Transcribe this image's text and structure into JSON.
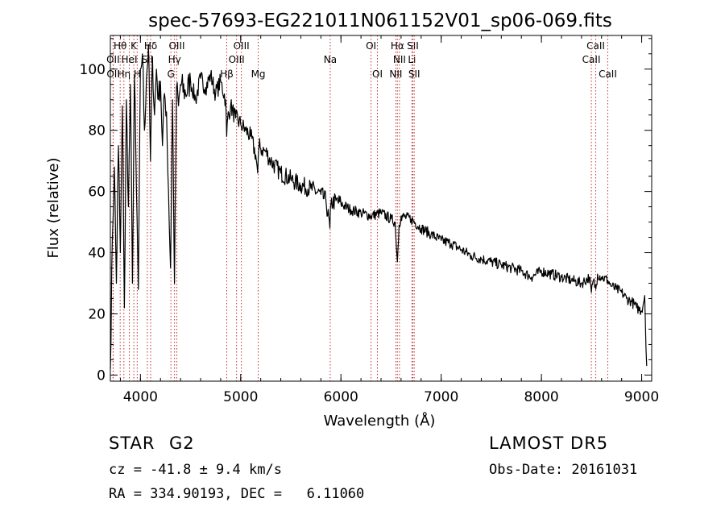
{
  "chart_data": {
    "type": "line",
    "title": "spec-57693-EG221011N061152V01_sp06-069.fits",
    "xlabel": "Wavelength (Å)",
    "ylabel": "Flux (relative)",
    "xlim": [
      3700,
      9100
    ],
    "ylim": [
      -2,
      111
    ],
    "xticks": [
      4000,
      5000,
      6000,
      7000,
      8000,
      9000
    ],
    "yticks": [
      0,
      20,
      40,
      60,
      80,
      100
    ],
    "line_color": "#000000",
    "marker_color": "#c03030",
    "series": [
      {
        "x": [
          3700,
          3720,
          3740,
          3760,
          3780,
          3800,
          3820,
          3840,
          3860,
          3880,
          3900,
          3920,
          3940,
          3960,
          3980,
          4000,
          4020,
          4040,
          4060,
          4080,
          4100,
          4120,
          4140,
          4160,
          4180,
          4200,
          4220,
          4240,
          4260,
          4280,
          4300,
          4320,
          4340,
          4360,
          4380,
          4400,
          4450,
          4500,
          4550,
          4600,
          4650,
          4700,
          4750,
          4800,
          4850,
          4860,
          4870,
          4900,
          4950,
          5000,
          5050,
          5100,
          5150,
          5170,
          5183,
          5200,
          5250,
          5300,
          5400,
          5500,
          5600,
          5700,
          5800,
          5850,
          5890,
          5900,
          5950,
          6000,
          6100,
          6200,
          6300,
          6400,
          6500,
          6540,
          6563,
          6580,
          6600,
          6700,
          6800,
          6900,
          7000,
          7100,
          7200,
          7300,
          7400,
          7500,
          7600,
          7700,
          7800,
          7900,
          8000,
          8100,
          8200,
          8300,
          8400,
          8480,
          8498,
          8520,
          8542,
          8560,
          8600,
          8662,
          8700,
          8750,
          8800,
          8850,
          8900,
          8950,
          9000,
          9030,
          9050
        ],
        "y": [
          2,
          45,
          68,
          30,
          75,
          40,
          88,
          22,
          90,
          55,
          95,
          30,
          98,
          60,
          28,
          100,
          105,
          80,
          97,
          108,
          70,
          104,
          85,
          100,
          90,
          96,
          75,
          92,
          86,
          60,
          35,
          90,
          30,
          94,
          88,
          95,
          92,
          96,
          90,
          97,
          94,
          98,
          92,
          96,
          90,
          78,
          84,
          88,
          84,
          82,
          80,
          78,
          72,
          66,
          75,
          74,
          73,
          70,
          66,
          64,
          62,
          61,
          59,
          57,
          48,
          56,
          57,
          56,
          54,
          53,
          52,
          53,
          51,
          50,
          37,
          49,
          52,
          51,
          48,
          46,
          44,
          43,
          41,
          39,
          38,
          37,
          36,
          35,
          34,
          32,
          34,
          33,
          32,
          31,
          30,
          32,
          27,
          31,
          28,
          33,
          32,
          31,
          29,
          28,
          27,
          25,
          24,
          22,
          21,
          26,
          3
        ]
      }
    ],
    "line_markers": [
      {
        "label": "Hθ",
        "x": 3798,
        "row": 1
      },
      {
        "label": "K",
        "x": 3934,
        "row": 1
      },
      {
        "label": "Hδ",
        "x": 4102,
        "row": 1
      },
      {
        "label": "OIII",
        "x": 4363,
        "row": 1
      },
      {
        "label": "OIII",
        "x": 5007,
        "row": 1
      },
      {
        "label": "OI",
        "x": 6300,
        "row": 1
      },
      {
        "label": "Hα",
        "x": 6563,
        "row": 1
      },
      {
        "label": "SII",
        "x": 6717,
        "row": 1
      },
      {
        "label": "CaII",
        "x": 8542,
        "row": 1
      },
      {
        "label": "OII",
        "x": 3727,
        "row": 2
      },
      {
        "label": "HeI",
        "x": 3889,
        "row": 2
      },
      {
        "label": "SII",
        "x": 4069,
        "row": 2
      },
      {
        "label": "Hγ",
        "x": 4340,
        "row": 2
      },
      {
        "label": "OIII",
        "x": 4959,
        "row": 2
      },
      {
        "label": "NII",
        "x": 6584,
        "row": 2
      },
      {
        "label": "Li",
        "x": 6708,
        "row": 2
      },
      {
        "label": "CaII",
        "x": 8498,
        "row": 2
      },
      {
        "label": "OII",
        "x": 3729,
        "row": 3
      },
      {
        "label": "Hη",
        "x": 3835,
        "row": 3
      },
      {
        "label": "H",
        "x": 3968,
        "row": 3
      },
      {
        "label": "G",
        "x": 4304,
        "row": 3
      },
      {
        "label": "Hβ",
        "x": 4861,
        "row": 3
      },
      {
        "label": "Mg",
        "x": 5175,
        "row": 3
      },
      {
        "label": "Na",
        "x": 5893,
        "row": 2
      },
      {
        "label": "OI",
        "x": 6364,
        "row": 3
      },
      {
        "label": "NII",
        "x": 6548,
        "row": 3
      },
      {
        "label": "SII",
        "x": 6731,
        "row": 3
      },
      {
        "label": "CaII",
        "x": 8662,
        "row": 3
      }
    ]
  },
  "info": {
    "class": "STAR",
    "subclass": "G2",
    "survey": "LAMOST DR5",
    "cz": "cz = -41.8 ± 9.4 km/s",
    "obs_date": "Obs-Date: 20161031",
    "radec": "RA = 334.90193, DEC =   6.11060"
  }
}
